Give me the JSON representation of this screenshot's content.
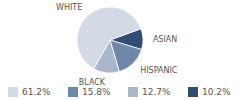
{
  "chart_data": {
    "type": "pie",
    "categories": [
      "WHITE",
      "HISPANIC",
      "BLACK",
      "ASIAN"
    ],
    "values": [
      61.2,
      15.8,
      12.7,
      10.2
    ],
    "value_labels": [
      "61.2%",
      "15.8%",
      "12.7%",
      "10.2%"
    ],
    "colors": [
      "#d3dae5",
      "#6f87a8",
      "#a9b7cb",
      "#2f4d73"
    ],
    "legend": "bottom"
  }
}
